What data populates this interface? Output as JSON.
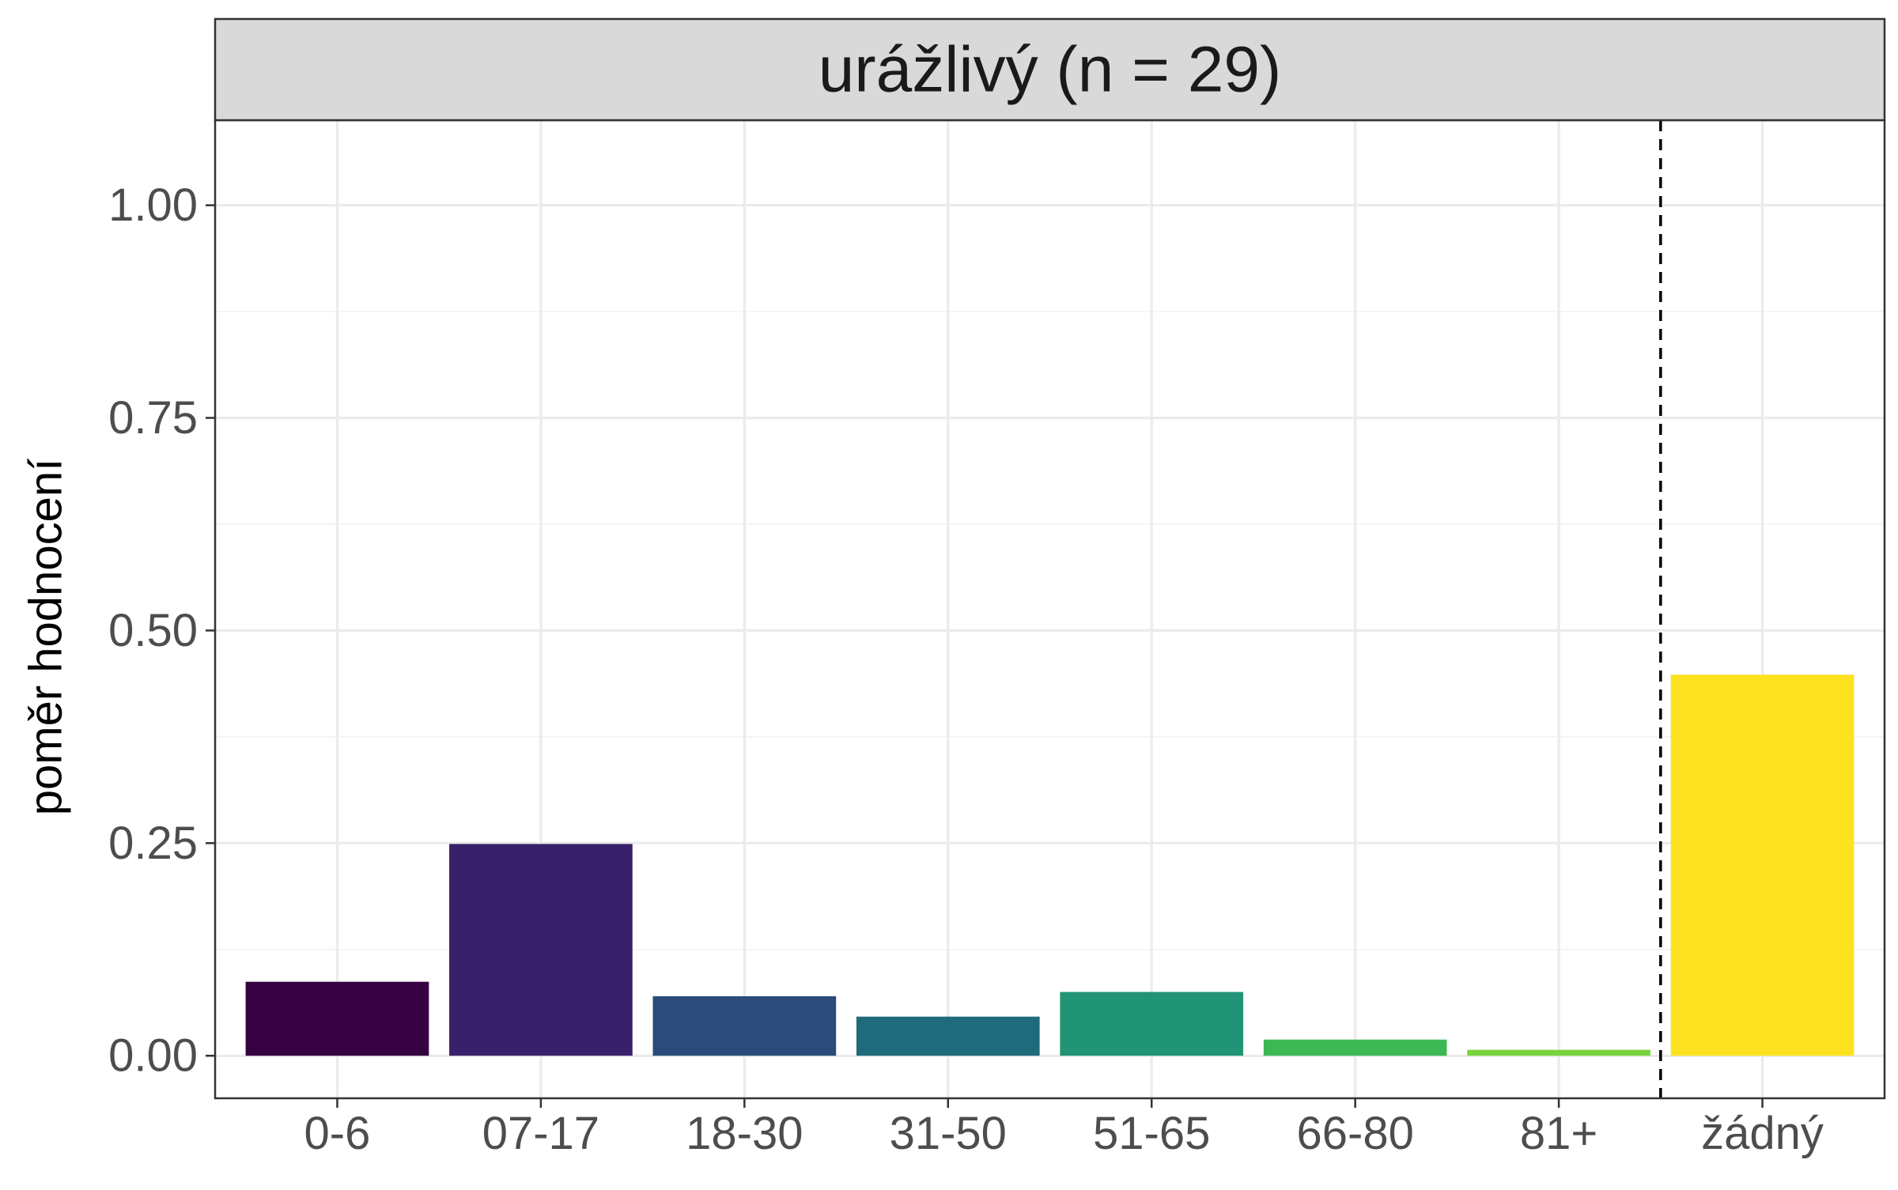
{
  "chart_data": {
    "type": "bar",
    "facet_title": "urážlivý (n = 29)",
    "ylabel": "poměr hodnocení",
    "xlabel": "",
    "categories": [
      "0-6",
      "07-17",
      "18-30",
      "31-50",
      "51-65",
      "66-80",
      "81+",
      "žádný"
    ],
    "values": [
      0.087,
      0.249,
      0.07,
      0.046,
      0.075,
      0.019,
      0.007,
      0.448
    ],
    "bar_colors": [
      "#360141",
      "#38216A",
      "#2B4B7A",
      "#1F6A7B",
      "#219475",
      "#3CB853",
      "#7AD23C",
      "#FCE21F"
    ],
    "ylim": [
      -0.05,
      1.1
    ],
    "yticks": [
      "0.00",
      "0.25",
      "0.50",
      "0.75",
      "1.00"
    ],
    "ytick_values": [
      0,
      0.25,
      0.5,
      0.75,
      1.0
    ],
    "separator_between": [
      "81+",
      "žádný"
    ],
    "grid": true,
    "theme": "bw"
  }
}
